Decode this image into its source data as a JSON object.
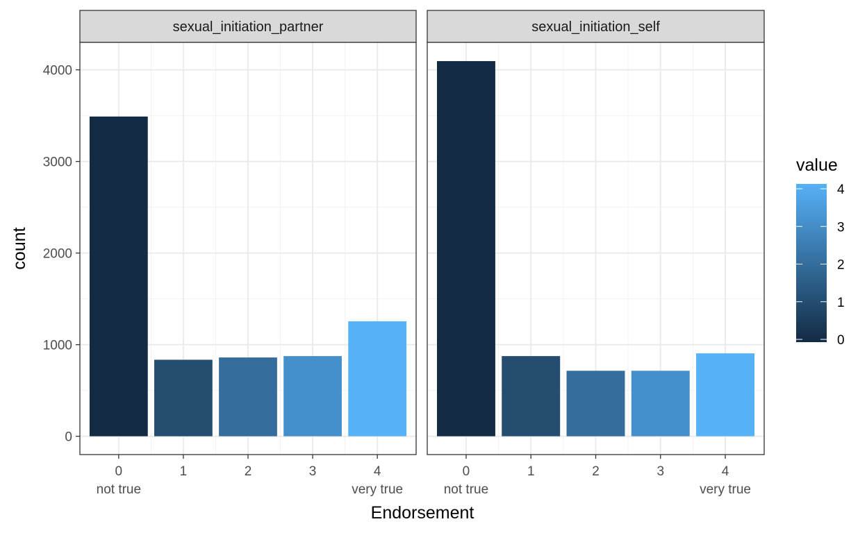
{
  "chart_data": {
    "type": "bar",
    "facets": [
      {
        "strip_label": "sexual_initiation_partner",
        "categories": [
          0,
          1,
          2,
          3,
          4
        ],
        "values": [
          3490,
          835,
          860,
          875,
          1255
        ]
      },
      {
        "strip_label": "sexual_initiation_self",
        "categories": [
          0,
          1,
          2,
          3,
          4
        ],
        "values": [
          4095,
          875,
          715,
          715,
          905
        ]
      }
    ],
    "x_tick_labels": [
      "0",
      "1",
      "2",
      "3",
      "4"
    ],
    "x_tick_sublabels": [
      "not true",
      "",
      "",
      "",
      "very true"
    ],
    "xlabel": "Endorsement",
    "ylabel": "count",
    "ylim": [
      -200,
      4300
    ],
    "y_ticks": [
      0,
      1000,
      2000,
      3000,
      4000
    ],
    "y_tick_labels": [
      "0",
      "1000",
      "2000",
      "3000",
      "4000"
    ],
    "grid": true,
    "legend": {
      "title": "value",
      "placement": "right",
      "type": "colorbar",
      "range": [
        0,
        4
      ],
      "ticks": [
        0,
        1,
        2,
        3,
        4
      ],
      "tick_labels": [
        "0",
        "1",
        "2",
        "3",
        "4"
      ],
      "color_low": "#132B43",
      "color_high": "#56B1F7"
    },
    "colors": {
      "strip_fill": "#d9d9d9",
      "panel_border": "#333333",
      "grid_major": "#ebebeb",
      "grid_minor": "#f3f3f3"
    }
  }
}
